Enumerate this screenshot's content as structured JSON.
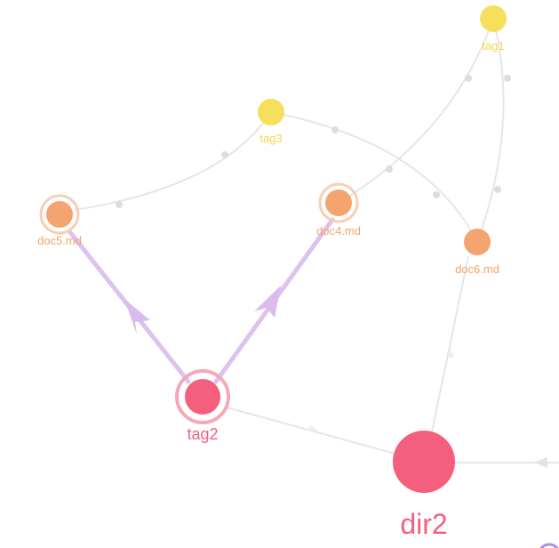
{
  "colors": {
    "tag": "#f5e05e",
    "doc": "#f4a46e",
    "tag_label": "#f2d84a",
    "doc_label": "#f2a468",
    "pink": "#f45f7d",
    "pink_ring": "#f5a8b9",
    "doc_ring": "#f8cfb3",
    "edge": "#e6e6e6",
    "edge_dot": "#dddddd",
    "highlight_edge": "#dcc3ef",
    "highlight_arrow": "#d9bbee"
  },
  "nodes": {
    "tag1": {
      "label": "tag1",
      "kind": "tag"
    },
    "tag3": {
      "label": "tag3",
      "kind": "tag"
    },
    "doc5": {
      "label": "doc5.md",
      "kind": "doc"
    },
    "doc4": {
      "label": "doc4.md",
      "kind": "doc"
    },
    "doc6": {
      "label": "doc6.md",
      "kind": "doc"
    },
    "tag2": {
      "label": "tag2",
      "kind": "tag-selected"
    },
    "dir2": {
      "label": "dir2",
      "kind": "dir"
    }
  }
}
